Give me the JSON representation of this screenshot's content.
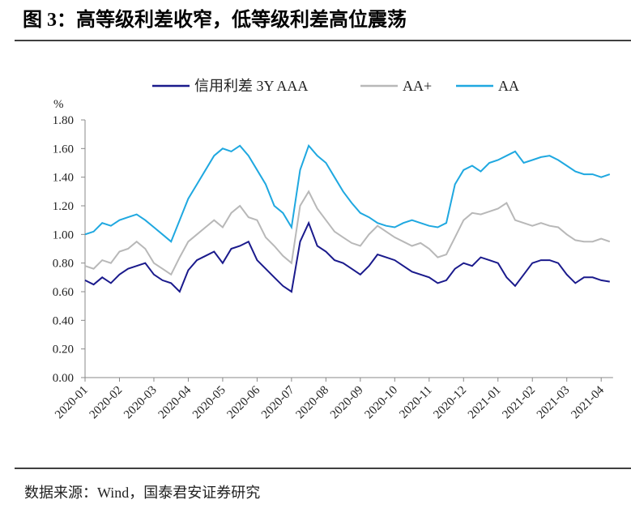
{
  "chart_data": {
    "type": "line",
    "title": "图 3：高等级利差收窄，低等级利差高位震荡",
    "source": "数据来源：Wind，国泰君安证券研究",
    "y_label": "%",
    "categories": [
      "2020-01",
      null,
      null,
      null,
      "2020-02",
      null,
      null,
      null,
      "2020-03",
      null,
      null,
      null,
      "2020-04",
      null,
      null,
      null,
      "2020-05",
      null,
      null,
      null,
      "2020-06",
      null,
      null,
      null,
      "2020-07",
      null,
      null,
      null,
      "2020-08",
      null,
      null,
      null,
      "2020-09",
      null,
      null,
      null,
      "2020-10",
      null,
      null,
      null,
      "2020-11",
      null,
      null,
      null,
      "2020-12",
      null,
      null,
      null,
      "2021-01",
      null,
      null,
      null,
      "2021-02",
      null,
      null,
      null,
      "2021-03",
      null,
      null,
      null,
      "2021-04",
      null
    ],
    "series": [
      {
        "name": "信用利差 3Y AAA",
        "color": "#1a1a8c",
        "values": [
          0.68,
          0.65,
          0.7,
          0.66,
          0.72,
          0.76,
          0.78,
          0.8,
          0.72,
          0.68,
          0.66,
          0.6,
          0.75,
          0.82,
          0.85,
          0.88,
          0.8,
          0.9,
          0.92,
          0.95,
          0.82,
          0.76,
          0.7,
          0.64,
          0.6,
          0.95,
          1.08,
          0.92,
          0.88,
          0.82,
          0.8,
          0.76,
          0.72,
          0.78,
          0.86,
          0.84,
          0.82,
          0.78,
          0.74,
          0.72,
          0.7,
          0.66,
          0.68,
          0.76,
          0.8,
          0.78,
          0.84,
          0.82,
          0.8,
          0.7,
          0.64,
          0.72,
          0.8,
          0.82,
          0.82,
          0.8,
          0.72,
          0.66,
          0.7,
          0.7,
          0.68,
          0.67
        ]
      },
      {
        "name": "AA+",
        "color": "#b8b8b8",
        "values": [
          0.78,
          0.76,
          0.82,
          0.8,
          0.88,
          0.9,
          0.95,
          0.9,
          0.8,
          0.76,
          0.72,
          0.84,
          0.95,
          1.0,
          1.05,
          1.1,
          1.05,
          1.15,
          1.2,
          1.12,
          1.1,
          0.98,
          0.92,
          0.85,
          0.8,
          1.2,
          1.3,
          1.18,
          1.1,
          1.02,
          0.98,
          0.94,
          0.92,
          1.0,
          1.06,
          1.02,
          0.98,
          0.95,
          0.92,
          0.94,
          0.9,
          0.84,
          0.86,
          0.98,
          1.1,
          1.15,
          1.14,
          1.16,
          1.18,
          1.22,
          1.1,
          1.08,
          1.06,
          1.08,
          1.06,
          1.05,
          1.0,
          0.96,
          0.95,
          0.95,
          0.97,
          0.95
        ]
      },
      {
        "name": "AA",
        "color": "#1fa8e0",
        "values": [
          1.0,
          1.02,
          1.08,
          1.06,
          1.1,
          1.12,
          1.14,
          1.1,
          1.05,
          1.0,
          0.95,
          1.1,
          1.25,
          1.35,
          1.45,
          1.55,
          1.6,
          1.58,
          1.62,
          1.55,
          1.45,
          1.35,
          1.2,
          1.15,
          1.05,
          1.45,
          1.62,
          1.55,
          1.5,
          1.4,
          1.3,
          1.22,
          1.15,
          1.12,
          1.08,
          1.06,
          1.05,
          1.08,
          1.1,
          1.08,
          1.06,
          1.05,
          1.08,
          1.35,
          1.45,
          1.48,
          1.44,
          1.5,
          1.52,
          1.55,
          1.58,
          1.5,
          1.52,
          1.54,
          1.55,
          1.52,
          1.48,
          1.44,
          1.42,
          1.42,
          1.4,
          1.42
        ]
      }
    ],
    "ylim": [
      0,
      1.8
    ],
    "yticks": [
      {
        "value": 0,
        "label": "0.00"
      },
      {
        "value": 0.2,
        "label": "0.20"
      },
      {
        "value": 0.4,
        "label": "0.40"
      },
      {
        "value": 0.6,
        "label": "0.60"
      },
      {
        "value": 0.8,
        "label": "0.80"
      },
      {
        "value": 1.0,
        "label": "1.00"
      },
      {
        "value": 1.2,
        "label": "1.20"
      },
      {
        "value": 1.4,
        "label": "1.40"
      },
      {
        "value": 1.6,
        "label": "1.60"
      },
      {
        "value": 1.8,
        "label": "1.80"
      }
    ],
    "legend": "top",
    "grid": false
  }
}
